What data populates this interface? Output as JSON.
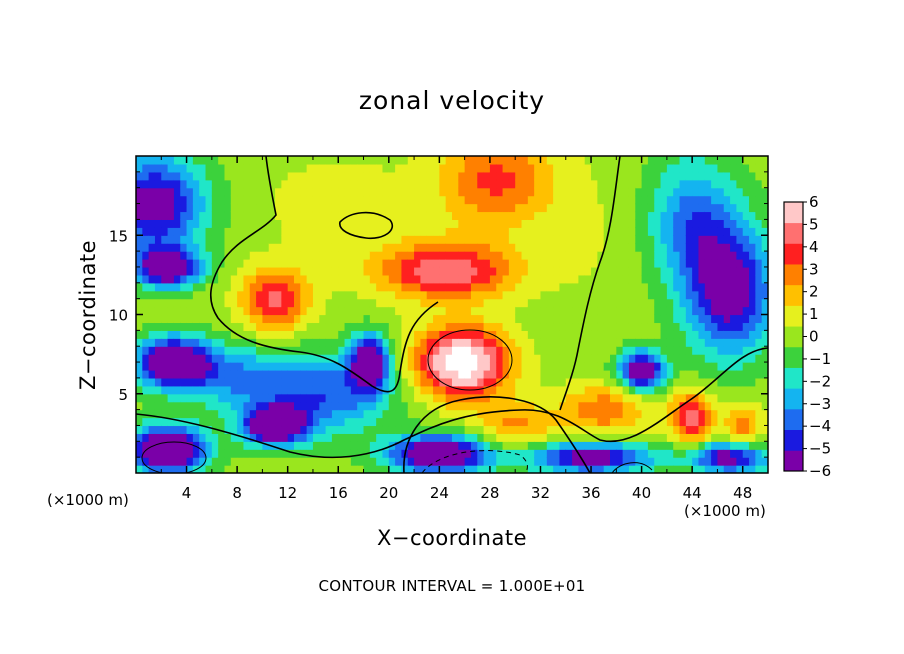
{
  "chart_data": {
    "type": "heatmap",
    "title": "zonal velocity",
    "xlabel": "X−coordinate",
    "ylabel": "Z−coordinate",
    "x_unit_left": "(×1000 m)",
    "x_unit_right": "(×1000 m)",
    "annotation": "CONTOUR INTERVAL = 1.000E+01",
    "xlim": [
      0,
      50
    ],
    "ylim": [
      0,
      20
    ],
    "x_ticks": [
      4,
      8,
      12,
      16,
      20,
      24,
      28,
      32,
      36,
      40,
      44,
      48
    ],
    "y_ticks": [
      5,
      10,
      15
    ],
    "colorbar": {
      "min": -6,
      "max": 6,
      "ticks": [
        6,
        5,
        4,
        3,
        2,
        1,
        0,
        -1,
        -2,
        -3,
        -4,
        -5,
        -6
      ],
      "tick_labels": [
        "6",
        "5",
        "4",
        "3",
        "2",
        "1",
        "0",
        "−1",
        "−2",
        "−3",
        "−4",
        "−5",
        "−6"
      ],
      "colors": [
        "#7a00a8",
        "#1a1ae0",
        "#1e6cf0",
        "#14b4f0",
        "#20e6c8",
        "#3cd23c",
        "#9ae61e",
        "#e6f01e",
        "#ffc000",
        "#ff8000",
        "#ff2020",
        "#ff7070",
        "#ffc8c8"
      ]
    },
    "features": [
      {
        "x": 25.8,
        "z": 7.0,
        "value": 7.5,
        "sx": 3.6,
        "sz": 2.2
      },
      {
        "x": 24.5,
        "z": 12.8,
        "value": 5.0,
        "sx": 5.5,
        "sz": 1.8
      },
      {
        "x": 11.0,
        "z": 11.0,
        "value": 4.5,
        "sx": 2.6,
        "sz": 2.0
      },
      {
        "x": 28.5,
        "z": 18.5,
        "value": 3.5,
        "sx": 4.5,
        "sz": 3.0
      },
      {
        "x": 44.0,
        "z": 3.5,
        "value": 5.0,
        "sx": 1.6,
        "sz": 1.6
      },
      {
        "x": 37.0,
        "z": 4.0,
        "value": 3.0,
        "sx": 3.5,
        "sz": 1.6
      },
      {
        "x": 30.0,
        "z": 3.0,
        "value": 2.5,
        "sx": 3.0,
        "sz": 1.5
      },
      {
        "x": 2.5,
        "z": 1.5,
        "value": -8.0,
        "sx": 3.0,
        "sz": 1.5
      },
      {
        "x": 11.0,
        "z": 3.0,
        "value": -7.5,
        "sx": 2.5,
        "sz": 1.2
      },
      {
        "x": 3.0,
        "z": 7.0,
        "value": -7.5,
        "sx": 3.0,
        "sz": 1.6
      },
      {
        "x": 18.5,
        "z": 7.0,
        "value": -7.0,
        "sx": 1.5,
        "sz": 1.7
      },
      {
        "x": 24.0,
        "z": 1.2,
        "value": -7.5,
        "sx": 4.0,
        "sz": 1.2
      },
      {
        "x": 40.0,
        "z": 6.5,
        "value": -7.0,
        "sx": 1.8,
        "sz": 1.2
      },
      {
        "x": 2.5,
        "z": 13.0,
        "value": -7.0,
        "sx": 2.5,
        "sz": 1.2
      },
      {
        "x": 1.5,
        "z": 17.0,
        "value": -6.0,
        "sx": 4.0,
        "sz": 3.0
      },
      {
        "x": 47.0,
        "z": 11.5,
        "value": -6.0,
        "sx": 3.5,
        "sz": 4.0
      },
      {
        "x": 44.0,
        "z": 16.0,
        "value": -3.5,
        "sx": 3.5,
        "sz": 4.0
      },
      {
        "x": 15.0,
        "z": 5.0,
        "value": -4.0,
        "sx": 5.0,
        "sz": 2.5
      },
      {
        "x": 8.0,
        "z": 6.0,
        "value": -3.0,
        "sx": 4.0,
        "sz": 2.0
      },
      {
        "x": 36.0,
        "z": 1.0,
        "value": -6.0,
        "sx": 5.0,
        "sz": 1.0
      },
      {
        "x": 47.0,
        "z": 1.0,
        "value": -6.0,
        "sx": 3.0,
        "sz": 1.0
      },
      {
        "x": 48.0,
        "z": 3.0,
        "value": 3.0,
        "sx": 1.5,
        "sz": 1.5
      },
      {
        "x": 16.0,
        "z": 17.0,
        "value": 1.0,
        "sx": 6.0,
        "sz": 3.0
      },
      {
        "x": 36.0,
        "z": 15.0,
        "value": 0.5,
        "sx": 4.0,
        "sz": 5.0
      }
    ]
  }
}
